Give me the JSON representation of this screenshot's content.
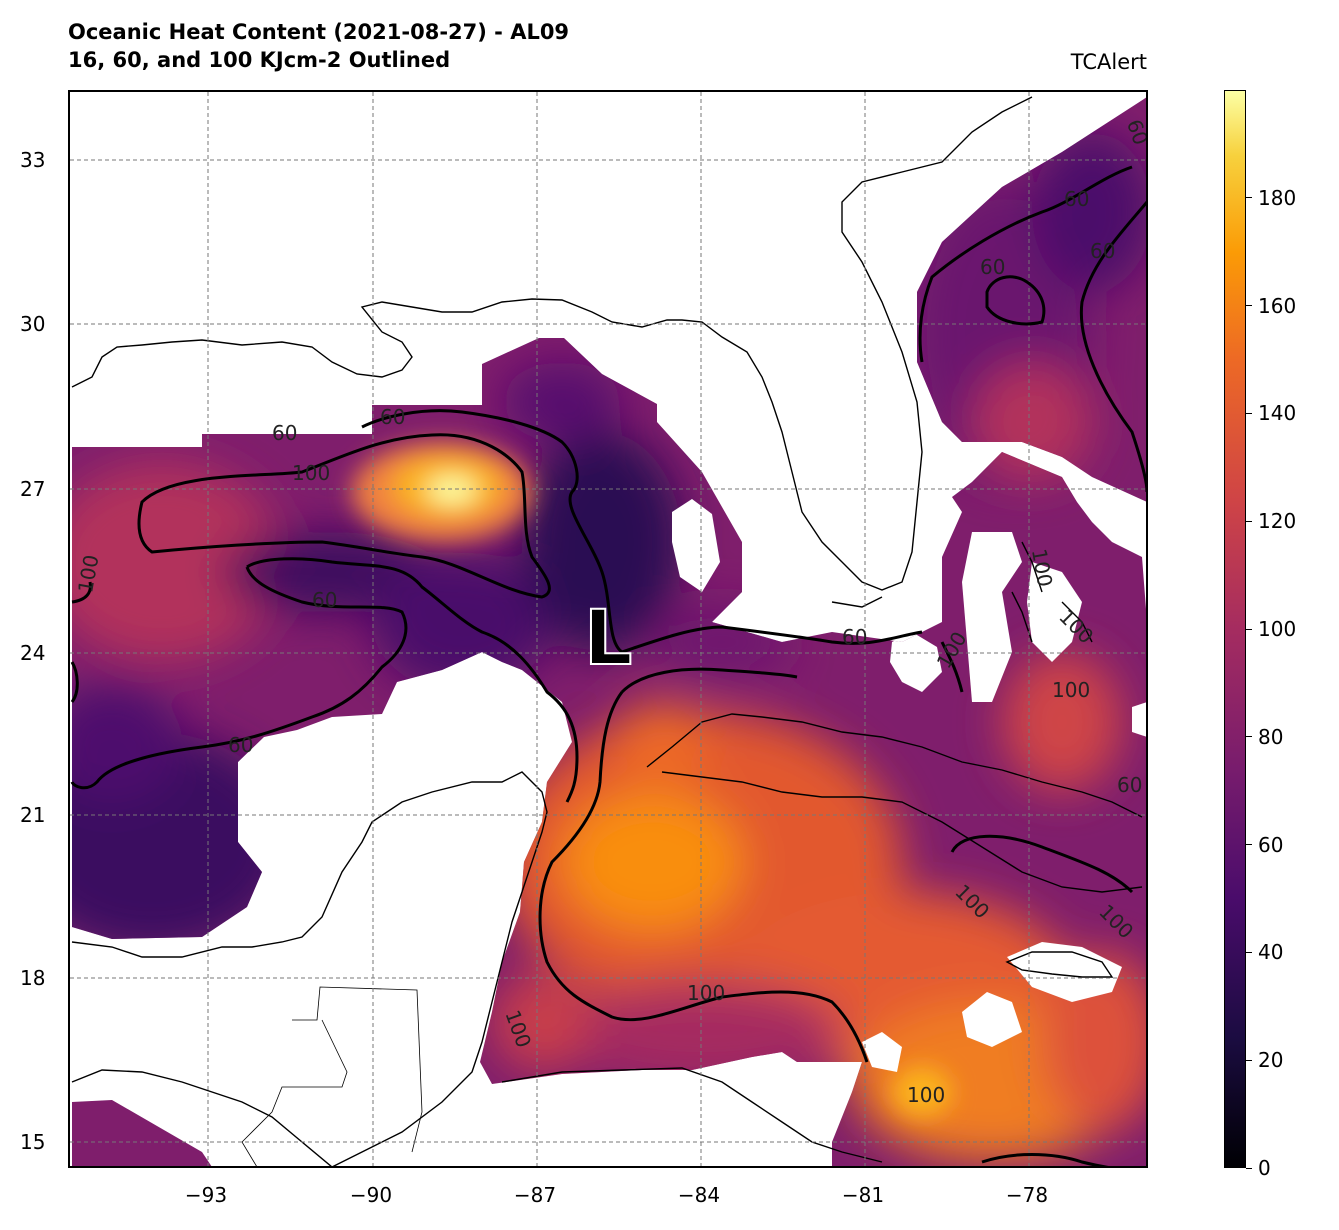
{
  "header": {
    "title_line1": "Oceanic Heat Content (2021-08-27) - AL09",
    "title_line2": "16, 60, and 100 KJcm-2 Outlined",
    "source": "TCAlert"
  },
  "axes": {
    "x_ticks": [
      "−93",
      "−90",
      "−87",
      "−84",
      "−81",
      "−78"
    ],
    "y_ticks": [
      "33",
      "30",
      "27",
      "24",
      "21",
      "18",
      "15"
    ]
  },
  "colorbar": {
    "colormap": "inferno",
    "range": [
      0,
      200
    ],
    "ticks": [
      "0",
      "20",
      "40",
      "60",
      "80",
      "100",
      "120",
      "140",
      "160",
      "180"
    ]
  },
  "map": {
    "storm_marker": "L",
    "contour_levels": [
      "16",
      "60",
      "100"
    ],
    "contour_labels": [
      "60",
      "60",
      "100",
      "60",
      "60",
      "60",
      "60",
      "60",
      "60",
      "60",
      "100",
      "100",
      "100",
      "100",
      "100",
      "100",
      "100",
      "100",
      "100",
      "100",
      "60"
    ]
  },
  "colors": {
    "land": "#ffffff",
    "coastline": "#000000",
    "grid": "#777777",
    "contour": "#000000"
  }
}
